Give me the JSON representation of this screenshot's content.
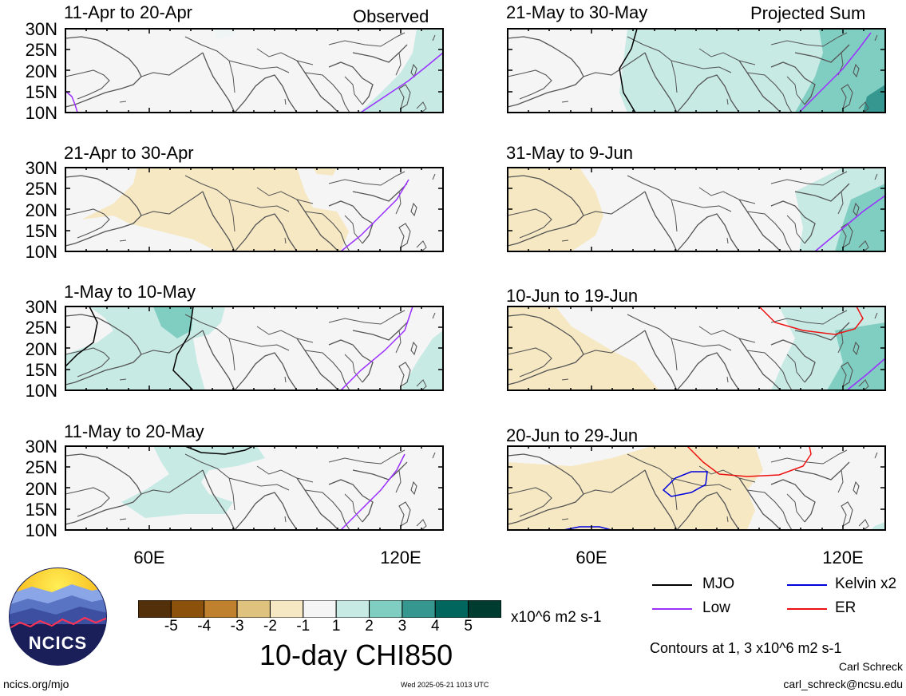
{
  "panels": [
    {
      "title": "11-Apr to 20-Apr",
      "corner": "Observed"
    },
    {
      "title": "21-Apr to 30-Apr",
      "corner": ""
    },
    {
      "title": "1-May to 10-May",
      "corner": ""
    },
    {
      "title": "11-May to 20-May",
      "corner": ""
    },
    {
      "title": "21-May to 30-May",
      "corner": "Projected Sum"
    },
    {
      "title": "31-May to 9-Jun",
      "corner": ""
    },
    {
      "title": "10-Jun to 19-Jun",
      "corner": ""
    },
    {
      "title": "20-Jun to 29-Jun",
      "corner": ""
    }
  ],
  "y_ticks": [
    "30N",
    "25N",
    "20N",
    "15N",
    "10N"
  ],
  "x_ticks": [
    "60E",
    "120E"
  ],
  "colorbar": {
    "labels": [
      "-5",
      "-4",
      "-3",
      "-2",
      "-1",
      "1",
      "2",
      "3",
      "4",
      "5"
    ],
    "colors": [
      "#54300a",
      "#8c510a",
      "#bf812d",
      "#dfc27d",
      "#f6e8c3",
      "#f5f5f5",
      "#c7eae5",
      "#80cdc1",
      "#35978f",
      "#01665e",
      "#003c30"
    ],
    "units": "x10^6 m2 s-1"
  },
  "main_title": "10-day CHI850",
  "legend": {
    "mjo": "MJO",
    "mjo_color": "#000000",
    "kelvin": "Kelvin x2",
    "kelvin_color": "#0000dd",
    "low": "Low",
    "low_color": "#9b30ff",
    "er": "ER",
    "er_color": "#ee1111"
  },
  "contour_note": "Contours at 1, 3 x10^6 m2 s-1",
  "author": "Carl Schreck",
  "email": "carl_schreck@ncsu.edu",
  "website": "ncics.org/mjo",
  "timestamp": "Wed 2025-05-21 1013 UTC",
  "logo_text": "NCICS"
}
